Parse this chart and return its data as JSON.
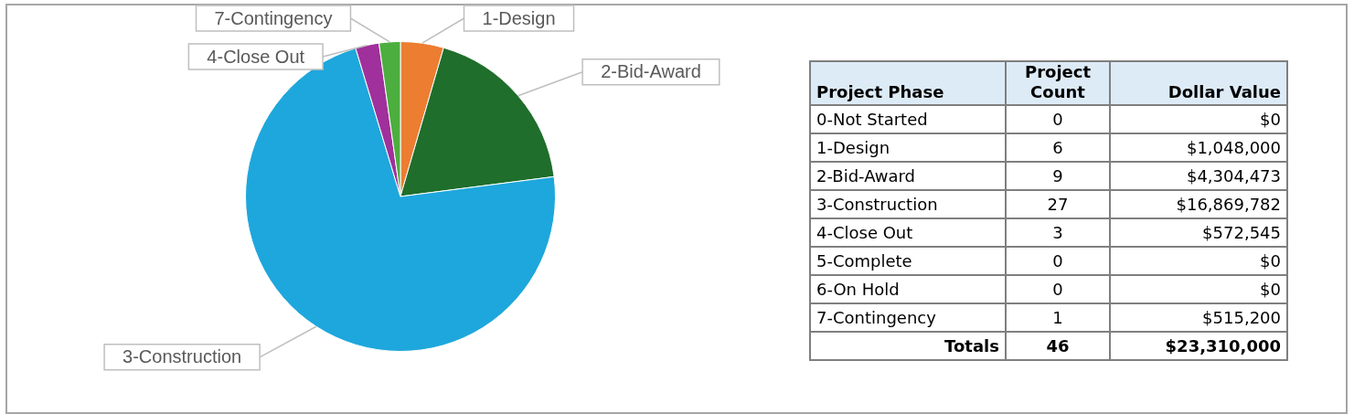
{
  "chart_data": [
    {
      "type": "pie",
      "categories": [
        "1-Design",
        "2-Bid-Award",
        "3-Construction",
        "4-Close Out",
        "7-Contingency"
      ],
      "values": [
        4.5,
        18.46,
        72.37,
        2.46,
        2.21
      ],
      "colors": [
        "#ed7d31",
        "#1f6e2b",
        "#1ea7dc",
        "#a0309b",
        "#4cae3f"
      ],
      "legend": false
    },
    {
      "type": "other",
      "xlabel": "Project Phase",
      "categories": [
        "0-Not Started",
        "1-Design",
        "2-Bid-Award",
        "3-Construction",
        "4-Close Out",
        "5-Complete",
        "6-On Hold",
        "7-Contingency"
      ],
      "series": [
        {
          "name": "Project Count",
          "values": [
            0,
            6,
            9,
            27,
            3,
            0,
            0,
            1
          ]
        },
        {
          "name": "Dollar Value",
          "values": [
            0,
            1048000,
            4304473,
            16869782,
            572545,
            0,
            0,
            515200
          ],
          "value_labels": [
            "$0",
            "$1,048,000",
            "$4,304,473",
            "$16,869,782",
            "$572,545",
            "$0",
            "$0",
            "$515,200"
          ]
        }
      ],
      "data_labels": true,
      "annotations": [
        "Totals"
      ],
      "totals": [
        "46",
        "$23,310,000"
      ]
    }
  ]
}
